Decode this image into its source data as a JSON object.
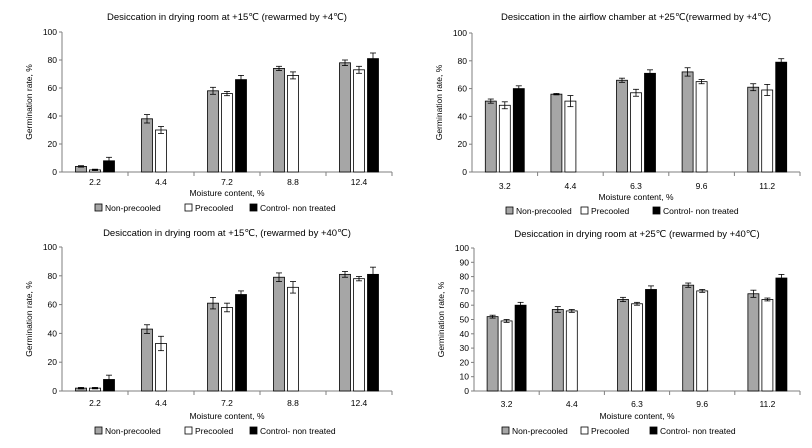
{
  "legend_labels": [
    "Non-precooled",
    "Precooled",
    "Control- non treated"
  ],
  "series_colors": [
    "#a6a6a6",
    "#ffffff",
    "#000000"
  ],
  "chart_data": [
    {
      "type": "bar",
      "title": "Desiccation in drying room at +15℃ (rewarmed  by +4℃)",
      "xlabel": "Moisture content, %",
      "ylabel": "Germination rate, %",
      "ylim": [
        0,
        100
      ],
      "yticks": [
        0,
        20,
        40,
        60,
        80,
        100
      ],
      "categories": [
        "2.2",
        "4.4",
        "7.2",
        "8.8",
        "12.4"
      ],
      "series": [
        {
          "name": "Non-precooled",
          "values": [
            4,
            38,
            58,
            74,
            78
          ],
          "errors": [
            0.5,
            3,
            2.5,
            1.5,
            2
          ]
        },
        {
          "name": "Precooled",
          "values": [
            1.5,
            30,
            56,
            69,
            73
          ],
          "errors": [
            0.5,
            2.5,
            1.5,
            2.5,
            2.5
          ]
        },
        {
          "name": "Control- non treated",
          "values": [
            8,
            null,
            66,
            null,
            81
          ],
          "errors": [
            2.5,
            null,
            3,
            null,
            4
          ]
        }
      ],
      "legend_position": "bottom"
    },
    {
      "type": "bar",
      "title": "Desiccation in the airflow chamber at +25℃(rewarmed by +4℃)",
      "xlabel": "Moisture content,  %",
      "ylabel": "Germination rate, %",
      "ylim": [
        0,
        100
      ],
      "yticks": [
        0,
        20,
        40,
        60,
        80,
        100
      ],
      "categories": [
        "3.2",
        "4.4",
        "6.3",
        "9.6",
        "11.2"
      ],
      "series": [
        {
          "name": "Non-precooled",
          "values": [
            51,
            56,
            66,
            72,
            61
          ],
          "errors": [
            1.5,
            0.5,
            1.5,
            3,
            2.5
          ]
        },
        {
          "name": "Precooled",
          "values": [
            48,
            51,
            57,
            65,
            59
          ],
          "errors": [
            2.5,
            4,
            2.5,
            1.5,
            4
          ]
        },
        {
          "name": "Control- non treated",
          "values": [
            60,
            null,
            71,
            null,
            79
          ],
          "errors": [
            2,
            null,
            2.5,
            null,
            2.5
          ]
        }
      ],
      "legend_position": "bottom"
    },
    {
      "type": "bar",
      "title": "Desiccation in drying room at +15℃, (rewarmed by +40℃)",
      "xlabel": "Moisture content, %",
      "ylabel": "Germination rate, %",
      "ylim": [
        0,
        100
      ],
      "yticks": [
        0,
        20,
        40,
        60,
        80,
        100
      ],
      "categories": [
        "2.2",
        "4.4",
        "7.2",
        "8.8",
        "12.4"
      ],
      "series": [
        {
          "name": "Non-precooled",
          "values": [
            2,
            43,
            61,
            79,
            81
          ],
          "errors": [
            0.5,
            3,
            4,
            3,
            2
          ]
        },
        {
          "name": "Precooled",
          "values": [
            2,
            33,
            58,
            72,
            78
          ],
          "errors": [
            0.5,
            5,
            3,
            4,
            1.5
          ]
        },
        {
          "name": "Control- non treated",
          "values": [
            8,
            null,
            67,
            null,
            81
          ],
          "errors": [
            3,
            null,
            2.5,
            null,
            5
          ]
        }
      ],
      "legend_position": "bottom"
    },
    {
      "type": "bar",
      "title": "Desiccation in drying room at +25℃ (rewarmed by +40℃)",
      "xlabel": "Moisture content, %",
      "ylabel": "Germination rate, %",
      "ylim": [
        0,
        100
      ],
      "yticks": [
        0,
        10,
        20,
        30,
        40,
        50,
        60,
        70,
        80,
        90,
        100
      ],
      "categories": [
        "3.2",
        "4.4",
        "6.3",
        "9.6",
        "11.2"
      ],
      "series": [
        {
          "name": "Non-precooled",
          "values": [
            52,
            57,
            64,
            74,
            68
          ],
          "errors": [
            1,
            2,
            1.5,
            1.5,
            2.5
          ]
        },
        {
          "name": "Precooled",
          "values": [
            49,
            56,
            61,
            70,
            64
          ],
          "errors": [
            1,
            1,
            1,
            1,
            1
          ]
        },
        {
          "name": "Control- non treated",
          "values": [
            60,
            null,
            71,
            null,
            79
          ],
          "errors": [
            2,
            null,
            2.5,
            null,
            2.5
          ]
        }
      ],
      "legend_position": "bottom"
    }
  ]
}
